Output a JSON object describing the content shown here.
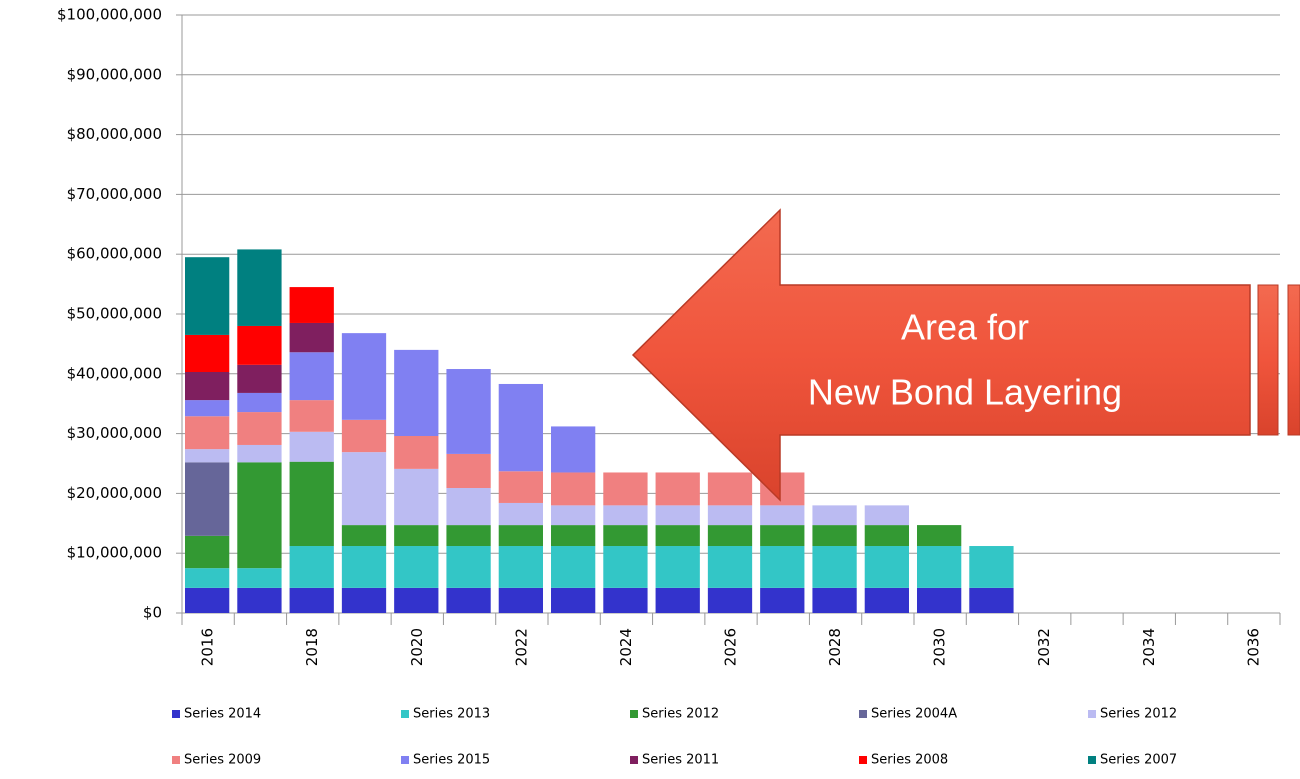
{
  "chart_data": {
    "type": "stacked_bar",
    "categories": [
      "2016",
      null,
      "2018",
      null,
      "2020",
      null,
      "2022",
      null,
      "2024",
      null,
      "2026",
      null,
      "2028",
      null,
      "2030",
      null,
      "2032",
      null,
      "2034",
      null,
      "2036"
    ],
    "series": [
      {
        "name": "Series 2014",
        "color": "#3333cc",
        "values": [
          4200000,
          4200000,
          4200000,
          4200000,
          4200000,
          4200000,
          4200000,
          4200000,
          4200000,
          4200000,
          4200000,
          4200000,
          4200000,
          4200000,
          4200000,
          4200000,
          0,
          0,
          0,
          0,
          0
        ]
      },
      {
        "name": "Series 2013",
        "color": "#33c6c6",
        "values": [
          3300000,
          3300000,
          7000000,
          7000000,
          7000000,
          7000000,
          7000000,
          7000000,
          7000000,
          7000000,
          7000000,
          7000000,
          7000000,
          7000000,
          7000000,
          7000000,
          0,
          0,
          0,
          0,
          0
        ]
      },
      {
        "name": "Series 2012",
        "color": "#339933",
        "values": [
          5400000,
          17700000,
          14100000,
          3500000,
          3500000,
          3500000,
          3500000,
          3500000,
          3500000,
          3500000,
          3500000,
          3500000,
          3500000,
          3500000,
          3500000,
          0,
          0,
          0,
          0,
          0,
          0
        ]
      },
      {
        "name": "Series 2004A",
        "color": "#666699",
        "values": [
          12300000,
          0,
          0,
          0,
          0,
          0,
          0,
          0,
          0,
          0,
          0,
          0,
          0,
          0,
          0,
          0,
          0,
          0,
          0,
          0,
          0
        ]
      },
      {
        "name": "Series 2012",
        "color": "#bbbbf2",
        "values": [
          2200000,
          2900000,
          5000000,
          12200000,
          9400000,
          6200000,
          3700000,
          3300000,
          3300000,
          3300000,
          3300000,
          3300000,
          3300000,
          3300000,
          0,
          0,
          0,
          0,
          0,
          0,
          0
        ]
      },
      {
        "name": "Series 2009",
        "color": "#f08080",
        "values": [
          5500000,
          5500000,
          5300000,
          5400000,
          5500000,
          5700000,
          5300000,
          5500000,
          5500000,
          5500000,
          5500000,
          5500000,
          0,
          0,
          0,
          0,
          0,
          0,
          0,
          0,
          0
        ]
      },
      {
        "name": "Series 2015",
        "color": "#8080f2",
        "values": [
          2700000,
          3200000,
          8000000,
          14500000,
          14400000,
          14200000,
          14600000,
          7700000,
          0,
          0,
          0,
          0,
          0,
          0,
          0,
          0,
          0,
          0,
          0,
          0,
          0
        ]
      },
      {
        "name": "Series 2011",
        "color": "#7f1f5f",
        "values": [
          4700000,
          4700000,
          4900000,
          0,
          0,
          0,
          0,
          0,
          0,
          0,
          0,
          0,
          0,
          0,
          0,
          0,
          0,
          0,
          0,
          0,
          0
        ]
      },
      {
        "name": "Series 2008",
        "color": "#ff0000",
        "values": [
          6200000,
          6500000,
          6000000,
          0,
          0,
          0,
          0,
          0,
          0,
          0,
          0,
          0,
          0,
          0,
          0,
          0,
          0,
          0,
          0,
          0,
          0
        ]
      },
      {
        "name": "Series 2007",
        "color": "#008080",
        "values": [
          13000000,
          12800000,
          0,
          0,
          0,
          0,
          0,
          0,
          0,
          0,
          0,
          0,
          0,
          0,
          0,
          0,
          0,
          0,
          0,
          0,
          0
        ]
      }
    ],
    "ylim": [
      0,
      100000000
    ],
    "yticks": [
      {
        "value": 0,
        "label": "$0"
      },
      {
        "value": 10000000,
        "label": "$10,000,000"
      },
      {
        "value": 20000000,
        "label": "$20,000,000"
      },
      {
        "value": 30000000,
        "label": "$30,000,000"
      },
      {
        "value": 40000000,
        "label": "$40,000,000"
      },
      {
        "value": 50000000,
        "label": "$50,000,000"
      },
      {
        "value": 60000000,
        "label": "$60,000,000"
      },
      {
        "value": 70000000,
        "label": "$70,000,000"
      },
      {
        "value": 80000000,
        "label": "$80,000,000"
      },
      {
        "value": 90000000,
        "label": "$90,000,000"
      },
      {
        "value": 100000000,
        "label": "$100,000,000"
      }
    ],
    "grid": true,
    "legend": "bottom",
    "annotation": [
      "Area for",
      "New Bond Layering"
    ]
  }
}
